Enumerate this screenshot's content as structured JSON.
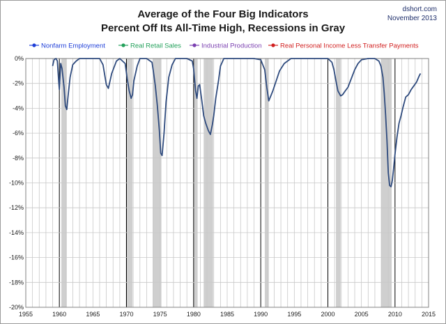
{
  "header": {
    "title_line1": "Average of the Four Big Indicators",
    "title_line2": "Percent Off Its All-Time High, Recessions in Gray",
    "source": "dshort.com",
    "date": "November 2013"
  },
  "colors": {
    "series_line": "#2e4a7d",
    "recession_band": "#cfcfcf",
    "grid": "#c8c8c8",
    "decade_line": "#000000"
  },
  "chart_data": {
    "type": "line",
    "title": "Average of the Four Big Indicators",
    "subtitle": "Percent Off Its All-Time High, Recessions in Gray",
    "xlim": [
      1955,
      2015
    ],
    "ylim": [
      -20,
      0
    ],
    "x_ticks": [
      1955,
      1960,
      1965,
      1970,
      1975,
      1980,
      1985,
      1990,
      1995,
      2000,
      2005,
      2010,
      2015
    ],
    "y_ticks": [
      0,
      -2,
      -4,
      -6,
      -8,
      -10,
      -12,
      -14,
      -16,
      -18,
      -20
    ],
    "y_tick_labels": [
      "0%",
      "-2%",
      "-4%",
      "-6%",
      "-8%",
      "-10%",
      "-12%",
      "-14%",
      "-16%",
      "-18%",
      "-20%"
    ],
    "grid": true,
    "legend_position": "top",
    "legend": [
      {
        "name": "Nonfarm Employment",
        "color": "#1f3fd8"
      },
      {
        "name": "Real Retail Sales",
        "color": "#22a05a"
      },
      {
        "name": "Industrial Production",
        "color": "#7a3fb0"
      },
      {
        "name": "Real Personal Income Less Transfer Payments",
        "color": "#d11f1f"
      }
    ],
    "recessions": [
      [
        1960.3,
        1961.1
      ],
      [
        1969.9,
        1970.9
      ],
      [
        1973.9,
        1975.2
      ],
      [
        1980.0,
        1980.6
      ],
      [
        1981.5,
        1982.9
      ],
      [
        1990.6,
        1991.2
      ],
      [
        2001.2,
        2001.9
      ],
      [
        2007.9,
        2009.5
      ]
    ],
    "series": [
      {
        "x": [
          1959.0,
          1959.2,
          1959.5,
          1959.7,
          1959.9,
          1960.0,
          1960.2,
          1960.4,
          1960.7,
          1960.9,
          1961.1,
          1961.3,
          1961.6,
          1962.0,
          1962.5,
          1963.0,
          1964.0,
          1965.0,
          1966.0,
          1966.5,
          1967.0,
          1967.3,
          1967.8,
          1968.5,
          1969.0,
          1969.8,
          1970.1,
          1970.4,
          1970.7,
          1970.9,
          1971.1,
          1971.6,
          1972.0,
          1972.5,
          1973.0,
          1973.8,
          1974.0,
          1974.3,
          1974.6,
          1974.9,
          1975.1,
          1975.3,
          1975.6,
          1975.9,
          1976.3,
          1976.8,
          1977.3,
          1978.0,
          1979.0,
          1979.8,
          1980.0,
          1980.3,
          1980.5,
          1980.7,
          1980.9,
          1981.2,
          1981.5,
          1981.8,
          1982.2,
          1982.5,
          1982.8,
          1983.0,
          1983.3,
          1983.7,
          1984.0,
          1984.5,
          1985.0,
          1986.0,
          1987.0,
          1988.0,
          1989.0,
          1990.0,
          1990.6,
          1990.9,
          1991.2,
          1991.5,
          1991.8,
          1992.3,
          1992.8,
          1993.5,
          1994.5,
          1995.5,
          1996.5,
          1998.0,
          1999.0,
          2000.0,
          2000.6,
          2000.9,
          2001.2,
          2001.5,
          2001.9,
          2002.2,
          2002.6,
          2003.0,
          2003.5,
          2004.0,
          2004.5,
          2005.0,
          2006.0,
          2007.0,
          2007.6,
          2007.9,
          2008.2,
          2008.4,
          2008.6,
          2008.8,
          2009.0,
          2009.2,
          2009.4,
          2009.6,
          2009.8,
          2010.0,
          2010.3,
          2010.6,
          2010.9,
          2011.2,
          2011.6,
          2012.0,
          2012.4,
          2012.8,
          2013.2,
          2013.6,
          2013.8
        ],
        "values": [
          -0.6,
          -0.1,
          0.0,
          -0.2,
          -1.8,
          -2.5,
          -0.4,
          -0.8,
          -2.3,
          -3.8,
          -4.1,
          -3.0,
          -1.5,
          -0.5,
          -0.2,
          0.0,
          0.0,
          0.0,
          0.0,
          -0.5,
          -2.1,
          -2.4,
          -1.2,
          -0.2,
          0.0,
          -0.4,
          -1.6,
          -2.6,
          -3.2,
          -2.9,
          -1.8,
          -0.6,
          0.0,
          0.0,
          0.0,
          -0.3,
          -1.0,
          -2.2,
          -3.8,
          -5.8,
          -7.6,
          -7.8,
          -6.0,
          -3.5,
          -1.5,
          -0.5,
          0.0,
          0.0,
          0.0,
          -0.2,
          -0.8,
          -2.6,
          -3.2,
          -2.2,
          -2.1,
          -3.3,
          -4.6,
          -5.2,
          -5.8,
          -6.1,
          -5.3,
          -4.6,
          -3.2,
          -1.8,
          -0.6,
          0.0,
          0.0,
          0.0,
          0.0,
          0.0,
          0.0,
          -0.1,
          -0.9,
          -2.3,
          -3.4,
          -3.0,
          -2.6,
          -1.8,
          -1.0,
          -0.4,
          0.0,
          0.0,
          0.0,
          0.0,
          0.0,
          0.0,
          -0.3,
          -0.9,
          -1.8,
          -2.6,
          -3.0,
          -2.9,
          -2.6,
          -2.3,
          -1.6,
          -0.9,
          -0.4,
          -0.1,
          0.0,
          0.0,
          -0.2,
          -0.6,
          -1.5,
          -2.8,
          -4.5,
          -6.6,
          -9.2,
          -10.2,
          -10.3,
          -9.8,
          -8.8,
          -7.7,
          -6.3,
          -5.2,
          -4.6,
          -3.9,
          -3.1,
          -2.9,
          -2.5,
          -2.2,
          -1.9,
          -1.4,
          -1.2
        ]
      }
    ]
  }
}
